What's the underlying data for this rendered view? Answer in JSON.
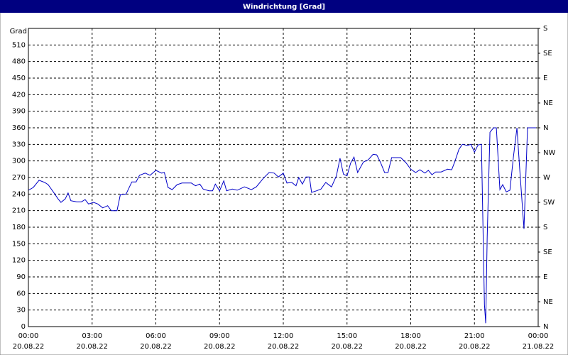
{
  "chart_data": {
    "type": "line",
    "title": "Windrichtung [Grad]",
    "y_label": "Grad",
    "color": "#0000c8",
    "grid": true,
    "xlim": [
      0,
      24
    ],
    "xticks": [
      {
        "value": 0,
        "label": "00:00",
        "date": "20.08.22"
      },
      {
        "value": 3,
        "label": "03:00",
        "date": "20.08.22"
      },
      {
        "value": 6,
        "label": "06:00",
        "date": "20.08.22"
      },
      {
        "value": 9,
        "label": "09:00",
        "date": "20.08.22"
      },
      {
        "value": 12,
        "label": "12:00",
        "date": "20.08.22"
      },
      {
        "value": 15,
        "label": "15:00",
        "date": "20.08.22"
      },
      {
        "value": 18,
        "label": "18:00",
        "date": "20.08.22"
      },
      {
        "value": 21,
        "label": "21:00",
        "date": "20.08.22"
      },
      {
        "value": 24,
        "label": "00:00",
        "date": "21.08.22"
      }
    ],
    "ylim": [
      0,
      540
    ],
    "yticks": [
      0,
      30,
      60,
      90,
      120,
      150,
      180,
      210,
      240,
      270,
      300,
      330,
      360,
      390,
      420,
      450,
      480,
      510
    ],
    "y2lim": [
      0,
      540
    ],
    "y2ticks": [
      {
        "value": 0,
        "label": "N"
      },
      {
        "value": 45,
        "label": "NE"
      },
      {
        "value": 90,
        "label": "E"
      },
      {
        "value": 135,
        "label": "SE"
      },
      {
        "value": 180,
        "label": "S"
      },
      {
        "value": 225,
        "label": "SW"
      },
      {
        "value": 270,
        "label": "W"
      },
      {
        "value": 315,
        "label": "NW"
      },
      {
        "value": 360,
        "label": "N"
      },
      {
        "value": 405,
        "label": "NE"
      },
      {
        "value": 450,
        "label": "E"
      },
      {
        "value": 495,
        "label": "SE"
      },
      {
        "value": 540,
        "label": "S"
      }
    ],
    "x": [
      0,
      0.23,
      0.5,
      0.77,
      0.93,
      1.17,
      1.4,
      1.53,
      1.73,
      1.87,
      2,
      2.27,
      2.5,
      2.67,
      2.83,
      3.07,
      3.27,
      3.5,
      3.73,
      3.9,
      4.17,
      4.33,
      4.6,
      4.87,
      5.07,
      5.23,
      5.5,
      5.73,
      6,
      6.27,
      6.4,
      6.57,
      6.77,
      7,
      7.23,
      7.5,
      7.67,
      7.87,
      8.07,
      8.23,
      8.5,
      8.67,
      8.8,
      9,
      9.2,
      9.33,
      9.6,
      9.83,
      10.17,
      10.5,
      10.73,
      11.07,
      11.33,
      11.57,
      11.77,
      12,
      12.17,
      12.4,
      12.6,
      12.73,
      12.9,
      13.07,
      13.23,
      13.33,
      13.57,
      13.77,
      14,
      14.27,
      14.5,
      14.67,
      14.83,
      15,
      15.17,
      15.33,
      15.5,
      15.77,
      16,
      16.23,
      16.4,
      16.57,
      16.77,
      16.93,
      17.1,
      17.33,
      17.53,
      17.77,
      18,
      18.23,
      18.43,
      18.67,
      18.83,
      19,
      19.17,
      19.43,
      19.73,
      19.93,
      20.07,
      20.27,
      20.43,
      20.67,
      20.83,
      21,
      21.17,
      21.33,
      21.47,
      21.53,
      21.6,
      21.73,
      21.9,
      22.03,
      22.2,
      22.33,
      22.5,
      22.67,
      22.83,
      23,
      23.13,
      23.33,
      23.5,
      23.9
    ],
    "values": [
      247,
      252,
      265,
      261,
      257,
      244,
      231,
      225,
      231,
      242,
      228,
      226,
      226,
      230,
      222,
      225,
      222,
      215,
      219,
      210,
      210,
      239,
      240,
      262,
      262,
      274,
      278,
      274,
      283,
      278,
      279,
      252,
      248,
      257,
      260,
      260,
      260,
      255,
      258,
      249,
      246,
      246,
      258,
      246,
      264,
      246,
      249,
      247,
      253,
      248,
      253,
      269,
      279,
      278,
      271,
      278,
      260,
      261,
      255,
      270,
      258,
      271,
      271,
      243,
      246,
      249,
      261,
      253,
      273,
      305,
      276,
      273,
      296,
      307,
      279,
      298,
      302,
      312,
      311,
      298,
      279,
      279,
      306,
      306,
      306,
      297,
      285,
      279,
      284,
      278,
      283,
      275,
      280,
      280,
      285,
      284,
      298,
      321,
      330,
      328,
      330,
      316,
      329,
      330,
      40,
      6,
      163,
      352,
      360,
      360,
      248,
      257,
      244,
      247,
      306,
      360,
      285,
      177,
      360,
      360
    ]
  }
}
